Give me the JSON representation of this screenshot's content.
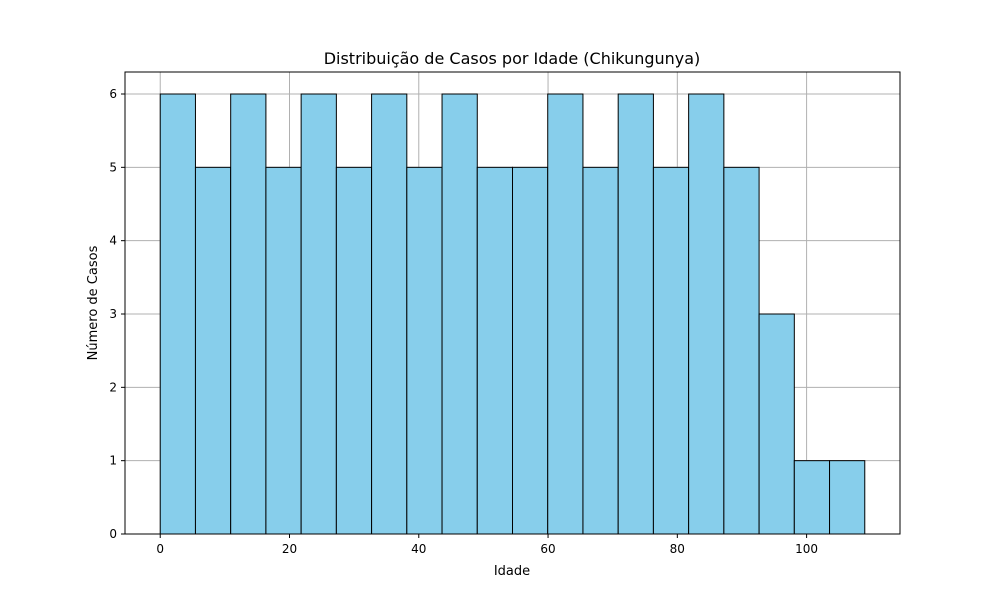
{
  "chart_data": {
    "type": "bar",
    "title": "Distribuição de Casos por Idade (Chikungunya)",
    "xlabel": "Idade",
    "ylabel": "Número de Casos",
    "xlim": [
      -5.45,
      114.45
    ],
    "ylim": [
      0,
      6.3
    ],
    "xticks": [
      "0",
      "20",
      "40",
      "60",
      "80",
      "100"
    ],
    "yticks": [
      "0",
      "1",
      "2",
      "3",
      "4",
      "5",
      "6"
    ],
    "grid": true,
    "bar_color": "#87ceeb",
    "edge_color": "#000000",
    "bins": [
      {
        "start": 0,
        "end": 5.45,
        "value": 6
      },
      {
        "start": 5.45,
        "end": 10.9,
        "value": 5
      },
      {
        "start": 10.9,
        "end": 16.35,
        "value": 6
      },
      {
        "start": 16.35,
        "end": 21.8,
        "value": 5
      },
      {
        "start": 21.8,
        "end": 27.25,
        "value": 6
      },
      {
        "start": 27.25,
        "end": 32.7,
        "value": 5
      },
      {
        "start": 32.7,
        "end": 38.15,
        "value": 6
      },
      {
        "start": 38.15,
        "end": 43.6,
        "value": 5
      },
      {
        "start": 43.6,
        "end": 49.05,
        "value": 6
      },
      {
        "start": 49.05,
        "end": 54.5,
        "value": 5
      },
      {
        "start": 54.5,
        "end": 59.95,
        "value": 5
      },
      {
        "start": 59.95,
        "end": 65.4,
        "value": 6
      },
      {
        "start": 65.4,
        "end": 70.85,
        "value": 5
      },
      {
        "start": 70.85,
        "end": 76.3,
        "value": 6
      },
      {
        "start": 76.3,
        "end": 81.75,
        "value": 5
      },
      {
        "start": 81.75,
        "end": 87.2,
        "value": 6
      },
      {
        "start": 87.2,
        "end": 92.65,
        "value": 5
      },
      {
        "start": 92.65,
        "end": 98.1,
        "value": 3
      },
      {
        "start": 98.1,
        "end": 103.55,
        "value": 1
      },
      {
        "start": 103.55,
        "end": 109,
        "value": 1
      }
    ]
  }
}
